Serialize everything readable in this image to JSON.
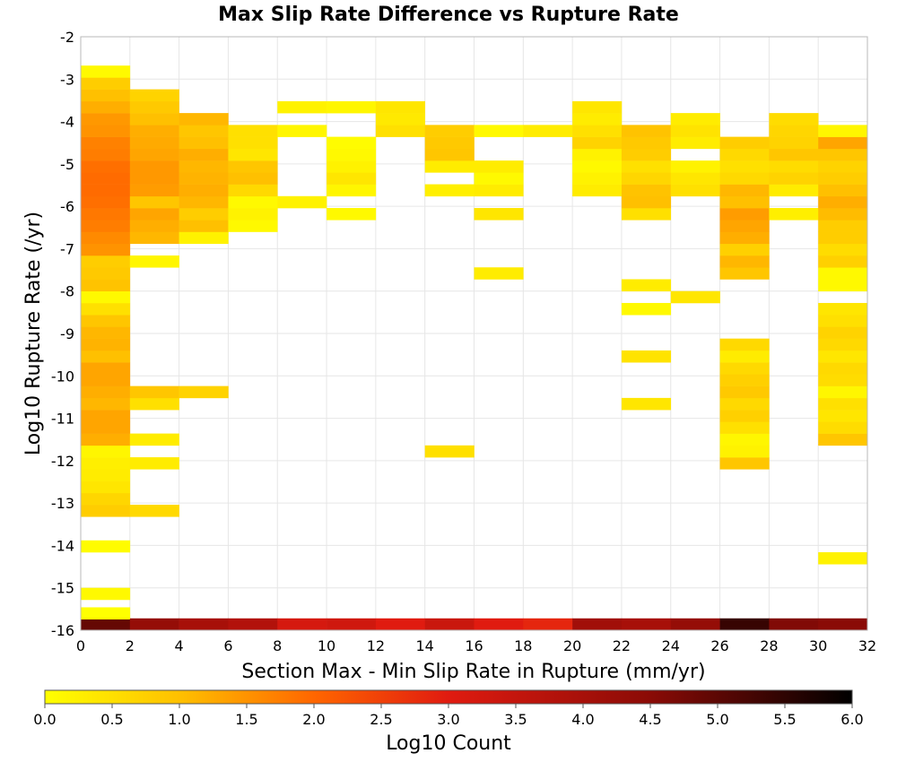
{
  "chart_data": {
    "type": "heatmap",
    "title": "Max Slip Rate Difference vs Rupture Rate",
    "xlabel": "Section Max - Min Slip Rate in Rupture (mm/yr)",
    "ylabel": "Log10 Rupture Rate (/yr)",
    "xlim": [
      0,
      32
    ],
    "ylim": [
      -16,
      -2
    ],
    "x_bin_width": 2,
    "y_bin_width": 0.28,
    "xticks": [
      "0",
      "2",
      "4",
      "6",
      "8",
      "10",
      "12",
      "14",
      "16",
      "18",
      "20",
      "22",
      "24",
      "26",
      "28",
      "30",
      "32"
    ],
    "yticks": [
      "-2",
      "-3",
      "-4",
      "-5",
      "-6",
      "-7",
      "-8",
      "-9",
      "-10",
      "-11",
      "-12",
      "-13",
      "-14",
      "-15",
      "-16"
    ],
    "grid": true,
    "colorscale": {
      "label": "Log10 Count",
      "min": 0.0,
      "max": 6.0,
      "ticks": [
        "0.0",
        "0.5",
        "1.0",
        "1.5",
        "2.0",
        "2.5",
        "3.0",
        "3.5",
        "4.0",
        "4.5",
        "5.0",
        "5.5",
        "6.0"
      ],
      "stops": [
        {
          "v": 0.0,
          "color": "#ffff00"
        },
        {
          "v": 1.0,
          "color": "#ffc000"
        },
        {
          "v": 2.0,
          "color": "#ff6600"
        },
        {
          "v": 3.0,
          "color": "#e01b10"
        },
        {
          "v": 4.5,
          "color": "#8a0b06"
        },
        {
          "v": 6.0,
          "color": "#000000"
        }
      ]
    },
    "columns": [
      {
        "x": 1,
        "cells": [
          {
            "y": -15.86,
            "v": 4.9
          },
          {
            "y": -15.6,
            "v": 0.0
          },
          {
            "y": -15.14,
            "v": 0.1
          },
          {
            "y": -14.02,
            "v": 0.05
          },
          {
            "y": -13.18,
            "v": 0.8
          },
          {
            "y": -12.9,
            "v": 0.65
          },
          {
            "y": -12.62,
            "v": 0.4
          },
          {
            "y": -12.34,
            "v": 0.3
          },
          {
            "y": -12.06,
            "v": 0.25
          },
          {
            "y": -11.78,
            "v": 0.15
          },
          {
            "y": -11.5,
            "v": 1.2
          },
          {
            "y": -11.22,
            "v": 1.3
          },
          {
            "y": -10.94,
            "v": 1.3
          },
          {
            "y": -10.66,
            "v": 1.1
          },
          {
            "y": -10.38,
            "v": 1.2
          },
          {
            "y": -10.1,
            "v": 1.3
          },
          {
            "y": -9.82,
            "v": 1.3
          },
          {
            "y": -9.54,
            "v": 1.0
          },
          {
            "y": -9.26,
            "v": 1.15
          },
          {
            "y": -8.98,
            "v": 1.1
          },
          {
            "y": -8.7,
            "v": 0.9
          },
          {
            "y": -8.42,
            "v": 0.5
          },
          {
            "y": -8.14,
            "v": 0.1
          },
          {
            "y": -7.86,
            "v": 0.95
          },
          {
            "y": -7.58,
            "v": 0.85
          },
          {
            "y": -7.3,
            "v": 0.8
          },
          {
            "y": -7.02,
            "v": 1.5
          },
          {
            "y": -6.74,
            "v": 1.6
          },
          {
            "y": -6.46,
            "v": 1.75
          },
          {
            "y": -6.18,
            "v": 1.8
          },
          {
            "y": -5.9,
            "v": 1.9
          },
          {
            "y": -5.62,
            "v": 1.95
          },
          {
            "y": -5.34,
            "v": 1.95
          },
          {
            "y": -5.06,
            "v": 1.9
          },
          {
            "y": -4.78,
            "v": 1.75
          },
          {
            "y": -4.5,
            "v": 1.7
          },
          {
            "y": -4.22,
            "v": 1.5
          },
          {
            "y": -3.94,
            "v": 1.45
          },
          {
            "y": -3.66,
            "v": 1.2
          },
          {
            "y": -3.38,
            "v": 1.0
          },
          {
            "y": -3.1,
            "v": 0.8
          },
          {
            "y": -2.82,
            "v": 0.1
          }
        ]
      },
      {
        "x": 3,
        "cells": [
          {
            "y": -15.86,
            "v": 4.3
          },
          {
            "y": -13.18,
            "v": 0.6
          },
          {
            "y": -12.06,
            "v": 0.3
          },
          {
            "y": -11.5,
            "v": 0.3
          },
          {
            "y": -10.66,
            "v": 0.5
          },
          {
            "y": -10.38,
            "v": 0.9
          },
          {
            "y": -7.3,
            "v": 0.15
          },
          {
            "y": -6.74,
            "v": 1.1
          },
          {
            "y": -6.46,
            "v": 1.2
          },
          {
            "y": -6.18,
            "v": 1.3
          },
          {
            "y": -5.9,
            "v": 0.9
          },
          {
            "y": -5.62,
            "v": 1.4
          },
          {
            "y": -5.34,
            "v": 1.45
          },
          {
            "y": -5.06,
            "v": 1.45
          },
          {
            "y": -4.78,
            "v": 1.3
          },
          {
            "y": -4.5,
            "v": 1.25
          },
          {
            "y": -4.22,
            "v": 1.2
          },
          {
            "y": -3.94,
            "v": 1.0
          },
          {
            "y": -3.66,
            "v": 0.85
          },
          {
            "y": -3.38,
            "v": 0.7
          }
        ]
      },
      {
        "x": 5,
        "cells": [
          {
            "y": -15.86,
            "v": 4.0
          },
          {
            "y": -10.38,
            "v": 0.7
          },
          {
            "y": -6.74,
            "v": 0.2
          },
          {
            "y": -6.46,
            "v": 1.0
          },
          {
            "y": -6.18,
            "v": 0.8
          },
          {
            "y": -5.9,
            "v": 1.1
          },
          {
            "y": -5.62,
            "v": 1.2
          },
          {
            "y": -5.34,
            "v": 1.15
          },
          {
            "y": -5.06,
            "v": 1.1
          },
          {
            "y": -4.78,
            "v": 1.2
          },
          {
            "y": -4.5,
            "v": 1.0
          },
          {
            "y": -4.22,
            "v": 0.9
          },
          {
            "y": -3.94,
            "v": 1.1
          }
        ]
      },
      {
        "x": 7,
        "cells": [
          {
            "y": -15.86,
            "v": 3.8
          },
          {
            "y": -6.46,
            "v": 0.1
          },
          {
            "y": -6.18,
            "v": 0.2
          },
          {
            "y": -5.9,
            "v": 0.1
          },
          {
            "y": -5.62,
            "v": 0.6
          },
          {
            "y": -5.34,
            "v": 1.0
          },
          {
            "y": -5.06,
            "v": 0.9
          },
          {
            "y": -4.78,
            "v": 0.4
          },
          {
            "y": -4.5,
            "v": 0.5
          },
          {
            "y": -4.22,
            "v": 0.5
          }
        ]
      },
      {
        "x": 9,
        "cells": [
          {
            "y": -15.86,
            "v": 3.2
          },
          {
            "y": -5.9,
            "v": 0.2
          },
          {
            "y": -4.22,
            "v": 0.15
          },
          {
            "y": -3.66,
            "v": 0.2
          }
        ]
      },
      {
        "x": 11,
        "cells": [
          {
            "y": -15.86,
            "v": 3.3
          },
          {
            "y": -6.18,
            "v": 0.1
          },
          {
            "y": -5.62,
            "v": 0.15
          },
          {
            "y": -5.34,
            "v": 0.4
          },
          {
            "y": -5.06,
            "v": 0.2
          },
          {
            "y": -4.78,
            "v": 0.1
          },
          {
            "y": -4.5,
            "v": 0.05
          },
          {
            "y": -3.66,
            "v": 0.15
          }
        ]
      },
      {
        "x": 13,
        "cells": [
          {
            "y": -15.86,
            "v": 3.0
          },
          {
            "y": -4.22,
            "v": 0.5
          },
          {
            "y": -3.94,
            "v": 0.35
          },
          {
            "y": -3.66,
            "v": 0.4
          }
        ]
      },
      {
        "x": 15,
        "cells": [
          {
            "y": -15.86,
            "v": 3.4
          },
          {
            "y": -11.78,
            "v": 0.5
          },
          {
            "y": -5.62,
            "v": 0.25
          },
          {
            "y": -5.06,
            "v": 0.3
          },
          {
            "y": -4.78,
            "v": 0.9
          },
          {
            "y": -4.5,
            "v": 0.85
          },
          {
            "y": -4.22,
            "v": 0.8
          }
        ]
      },
      {
        "x": 17,
        "cells": [
          {
            "y": -15.86,
            "v": 3.0
          },
          {
            "y": -7.58,
            "v": 0.3
          },
          {
            "y": -6.18,
            "v": 0.4
          },
          {
            "y": -5.62,
            "v": 0.3
          },
          {
            "y": -5.34,
            "v": 0.1
          },
          {
            "y": -5.06,
            "v": 0.3
          },
          {
            "y": -4.22,
            "v": 0.1
          }
        ]
      },
      {
        "x": 19,
        "cells": [
          {
            "y": -15.86,
            "v": 2.85
          },
          {
            "y": -4.22,
            "v": 0.3
          }
        ]
      },
      {
        "x": 21,
        "cells": [
          {
            "y": -15.86,
            "v": 4.1
          },
          {
            "y": -5.62,
            "v": 0.3
          },
          {
            "y": -5.34,
            "v": 0.2
          },
          {
            "y": -5.06,
            "v": 0.1
          },
          {
            "y": -4.78,
            "v": 0.2
          },
          {
            "y": -4.5,
            "v": 0.7
          },
          {
            "y": -4.22,
            "v": 0.5
          },
          {
            "y": -3.94,
            "v": 0.3
          },
          {
            "y": -3.66,
            "v": 0.4
          }
        ]
      },
      {
        "x": 23,
        "cells": [
          {
            "y": -15.86,
            "v": 4.0
          },
          {
            "y": -10.66,
            "v": 0.4
          },
          {
            "y": -9.54,
            "v": 0.45
          },
          {
            "y": -8.42,
            "v": 0.1
          },
          {
            "y": -7.86,
            "v": 0.3
          },
          {
            "y": -6.18,
            "v": 0.5
          },
          {
            "y": -5.9,
            "v": 1.0
          },
          {
            "y": -5.62,
            "v": 0.95
          },
          {
            "y": -5.34,
            "v": 0.65
          },
          {
            "y": -5.06,
            "v": 0.5
          },
          {
            "y": -4.78,
            "v": 0.8
          },
          {
            "y": -4.5,
            "v": 0.85
          },
          {
            "y": -4.22,
            "v": 0.95
          }
        ]
      },
      {
        "x": 25,
        "cells": [
          {
            "y": -15.86,
            "v": 4.3
          },
          {
            "y": -8.14,
            "v": 0.4
          },
          {
            "y": -5.62,
            "v": 0.5
          },
          {
            "y": -5.34,
            "v": 0.4
          },
          {
            "y": -5.06,
            "v": 0.2
          },
          {
            "y": -4.5,
            "v": 0.3
          },
          {
            "y": -4.22,
            "v": 0.45
          },
          {
            "y": -3.94,
            "v": 0.3
          }
        ]
      },
      {
        "x": 27,
        "cells": [
          {
            "y": -15.86,
            "v": 5.4
          },
          {
            "y": -12.06,
            "v": 0.9
          },
          {
            "y": -11.78,
            "v": 0.2
          },
          {
            "y": -11.5,
            "v": 0.15
          },
          {
            "y": -11.22,
            "v": 0.5
          },
          {
            "y": -10.94,
            "v": 0.75
          },
          {
            "y": -10.66,
            "v": 0.6
          },
          {
            "y": -10.38,
            "v": 0.85
          },
          {
            "y": -10.1,
            "v": 0.75
          },
          {
            "y": -9.82,
            "v": 0.6
          },
          {
            "y": -9.54,
            "v": 0.3
          },
          {
            "y": -9.26,
            "v": 0.6
          },
          {
            "y": -7.58,
            "v": 0.9
          },
          {
            "y": -7.3,
            "v": 1.1
          },
          {
            "y": -7.02,
            "v": 0.75
          },
          {
            "y": -6.74,
            "v": 1.2
          },
          {
            "y": -6.46,
            "v": 1.3
          },
          {
            "y": -6.18,
            "v": 1.4
          },
          {
            "y": -5.9,
            "v": 1.0
          },
          {
            "y": -5.62,
            "v": 1.1
          },
          {
            "y": -5.34,
            "v": 0.6
          },
          {
            "y": -5.06,
            "v": 0.5
          },
          {
            "y": -4.78,
            "v": 0.6
          },
          {
            "y": -4.5,
            "v": 0.8
          }
        ]
      },
      {
        "x": 29,
        "cells": [
          {
            "y": -15.86,
            "v": 4.6
          },
          {
            "y": -6.18,
            "v": 0.25
          },
          {
            "y": -5.62,
            "v": 0.3
          },
          {
            "y": -5.34,
            "v": 0.7
          },
          {
            "y": -5.06,
            "v": 0.55
          },
          {
            "y": -4.78,
            "v": 0.9
          },
          {
            "y": -4.5,
            "v": 0.7
          },
          {
            "y": -4.22,
            "v": 0.65
          },
          {
            "y": -3.94,
            "v": 0.55
          }
        ]
      },
      {
        "x": 31,
        "cells": [
          {
            "y": -15.86,
            "v": 4.5
          },
          {
            "y": -14.3,
            "v": 0.2
          },
          {
            "y": -11.5,
            "v": 0.9
          },
          {
            "y": -11.22,
            "v": 0.55
          },
          {
            "y": -10.94,
            "v": 0.4
          },
          {
            "y": -10.66,
            "v": 0.5
          },
          {
            "y": -10.38,
            "v": 0.15
          },
          {
            "y": -10.1,
            "v": 0.55
          },
          {
            "y": -9.82,
            "v": 0.6
          },
          {
            "y": -9.54,
            "v": 0.4
          },
          {
            "y": -9.26,
            "v": 0.6
          },
          {
            "y": -8.98,
            "v": 0.7
          },
          {
            "y": -8.7,
            "v": 0.5
          },
          {
            "y": -8.42,
            "v": 0.4
          },
          {
            "y": -7.86,
            "v": 0.1
          },
          {
            "y": -7.58,
            "v": 0.1
          },
          {
            "y": -7.3,
            "v": 0.75
          },
          {
            "y": -7.02,
            "v": 0.55
          },
          {
            "y": -6.74,
            "v": 0.8
          },
          {
            "y": -6.46,
            "v": 0.8
          },
          {
            "y": -6.18,
            "v": 1.05
          },
          {
            "y": -5.9,
            "v": 1.2
          },
          {
            "y": -5.62,
            "v": 1.0
          },
          {
            "y": -5.34,
            "v": 0.8
          },
          {
            "y": -5.06,
            "v": 0.7
          },
          {
            "y": -4.78,
            "v": 0.9
          },
          {
            "y": -4.5,
            "v": 1.3
          },
          {
            "y": -4.22,
            "v": 0.15
          }
        ]
      }
    ]
  }
}
